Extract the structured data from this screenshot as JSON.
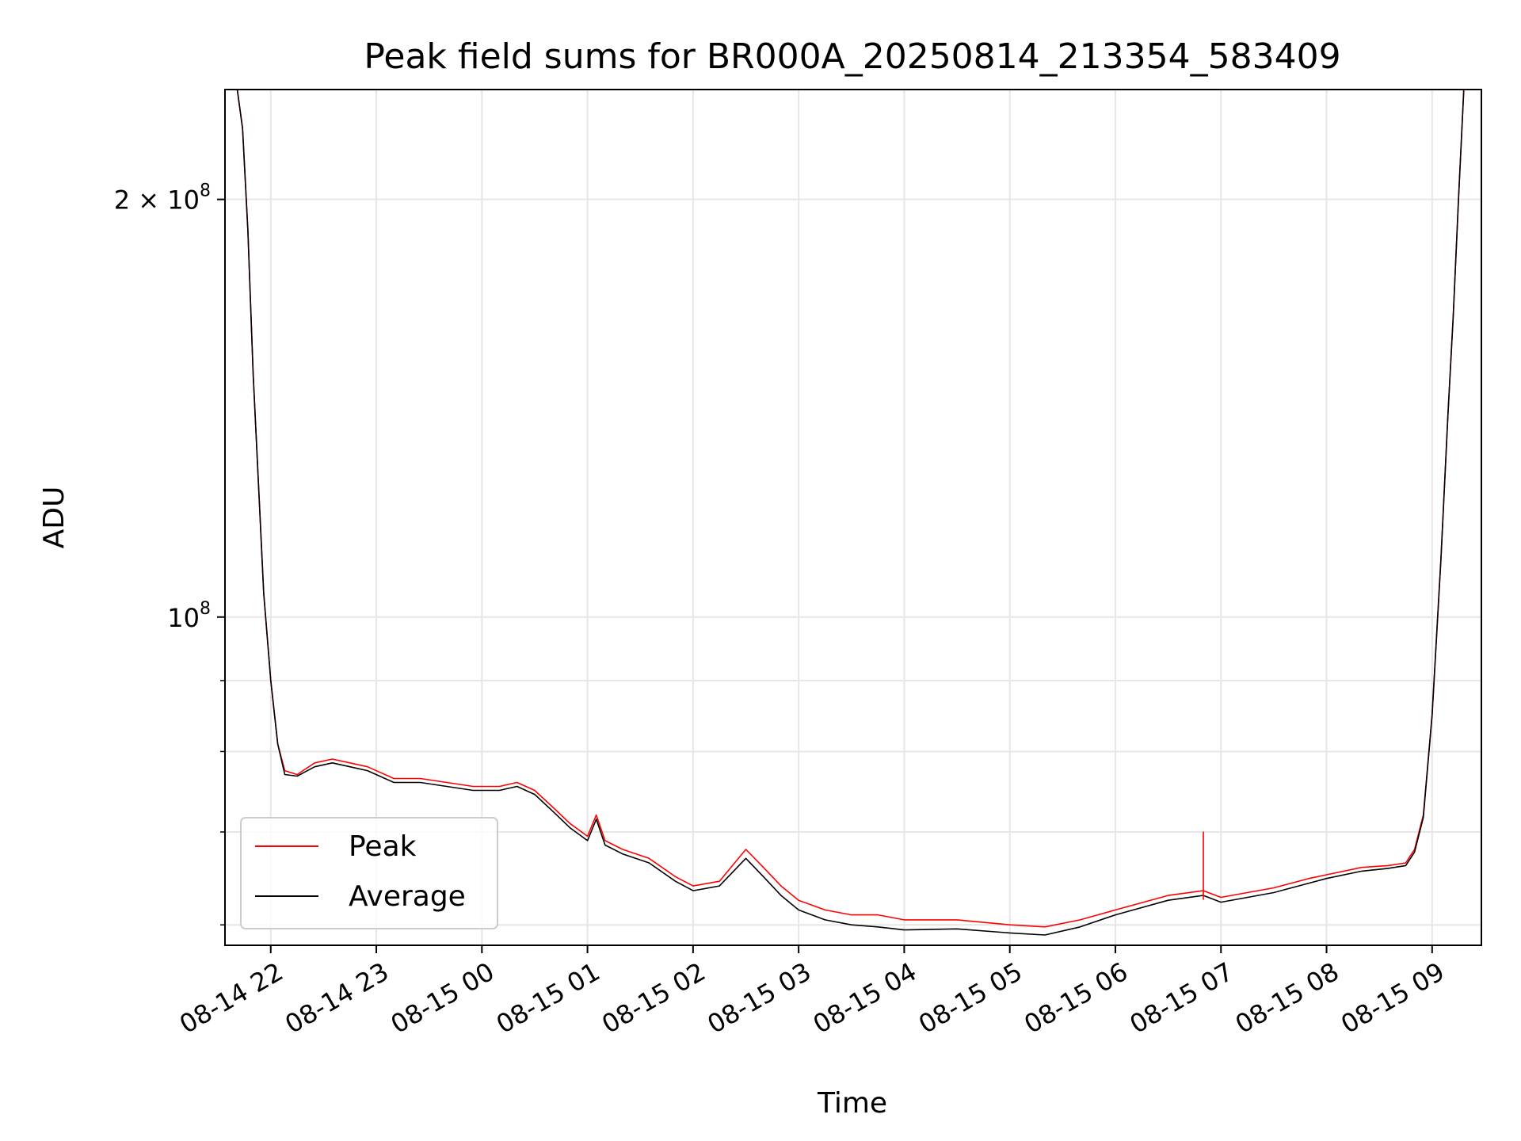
{
  "chart_data": {
    "type": "line",
    "title": "Peak field sums for BR000A_20250814_213354_583409",
    "xlabel": "Time",
    "ylabel": "ADU",
    "yscale": "log",
    "ylim": [
      58000000,
      240000000
    ],
    "xlim": [
      "2025-08-14 21:34",
      "2025-08-15 09:28"
    ],
    "grid": true,
    "legend_position": "lower-left",
    "x_ticks": [
      {
        "value": "2025-08-14 22:00",
        "label": "08-14 22"
      },
      {
        "value": "2025-08-14 23:00",
        "label": "08-14 23"
      },
      {
        "value": "2025-08-15 00:00",
        "label": "08-15 00"
      },
      {
        "value": "2025-08-15 01:00",
        "label": "08-15 01"
      },
      {
        "value": "2025-08-15 02:00",
        "label": "08-15 02"
      },
      {
        "value": "2025-08-15 03:00",
        "label": "08-15 03"
      },
      {
        "value": "2025-08-15 04:00",
        "label": "08-15 04"
      },
      {
        "value": "2025-08-15 05:00",
        "label": "08-15 05"
      },
      {
        "value": "2025-08-15 06:00",
        "label": "08-15 06"
      },
      {
        "value": "2025-08-15 07:00",
        "label": "08-15 07"
      },
      {
        "value": "2025-08-15 08:00",
        "label": "08-15 08"
      },
      {
        "value": "2025-08-15 09:00",
        "label": "08-15 09"
      }
    ],
    "y_major_ticks": [
      {
        "value": 100000000,
        "base": "10",
        "exp": "8",
        "prefix": ""
      },
      {
        "value": 200000000,
        "base": "10",
        "exp": "8",
        "prefix": "2 × "
      }
    ],
    "y_minor_ticks": [
      60000000,
      70000000,
      80000000,
      90000000
    ],
    "series": [
      {
        "name": "Peak",
        "color": "#ff0000",
        "x": [
          "2025-08-14 21:41",
          "2025-08-14 21:44",
          "2025-08-14 21:47",
          "2025-08-14 21:50",
          "2025-08-14 21:53",
          "2025-08-14 21:56",
          "2025-08-14 22:00",
          "2025-08-14 22:04",
          "2025-08-14 22:08",
          "2025-08-14 22:15",
          "2025-08-14 22:25",
          "2025-08-14 22:35",
          "2025-08-14 22:45",
          "2025-08-14 22:55",
          "2025-08-14 23:10",
          "2025-08-14 23:25",
          "2025-08-14 23:40",
          "2025-08-14 23:55",
          "2025-08-15 00:10",
          "2025-08-15 00:20",
          "2025-08-15 00:30",
          "2025-08-15 00:40",
          "2025-08-15 00:50",
          "2025-08-15 01:00",
          "2025-08-15 01:05",
          "2025-08-15 01:10",
          "2025-08-15 01:20",
          "2025-08-15 01:35",
          "2025-08-15 01:50",
          "2025-08-15 02:00",
          "2025-08-15 02:15",
          "2025-08-15 02:30",
          "2025-08-15 02:40",
          "2025-08-15 02:50",
          "2025-08-15 03:00",
          "2025-08-15 03:15",
          "2025-08-15 03:30",
          "2025-08-15 03:45",
          "2025-08-15 04:00",
          "2025-08-15 04:30",
          "2025-08-15 05:00",
          "2025-08-15 05:20",
          "2025-08-15 05:40",
          "2025-08-15 06:00",
          "2025-08-15 06:30",
          "2025-08-15 06:50",
          "2025-08-15 07:00",
          "2025-08-15 07:30",
          "2025-08-15 07:50",
          "2025-08-15 08:00",
          "2025-08-15 08:20",
          "2025-08-15 08:35",
          "2025-08-15 08:45",
          "2025-08-15 08:50",
          "2025-08-15 08:55",
          "2025-08-15 09:00",
          "2025-08-15 09:05",
          "2025-08-15 09:09",
          "2025-08-15 09:12",
          "2025-08-15 09:15",
          "2025-08-15 09:18"
        ],
        "values": [
          240000000,
          225000000,
          190000000,
          150000000,
          125000000,
          104000000,
          90000000,
          81000000,
          77500000,
          77000000,
          78500000,
          79000000,
          78500000,
          78000000,
          76500000,
          76500000,
          76000000,
          75500000,
          75500000,
          76000000,
          75000000,
          73000000,
          71000000,
          69500000,
          72000000,
          69000000,
          68000000,
          67000000,
          65000000,
          64000000,
          64500000,
          68000000,
          66000000,
          64000000,
          62500000,
          61500000,
          61000000,
          61000000,
          60500000,
          60500000,
          60000000,
          59800000,
          60500000,
          61500000,
          63000000,
          63500000,
          62800000,
          63800000,
          64800000,
          65200000,
          66000000,
          66200000,
          66500000,
          68000000,
          72000000,
          85000000,
          110000000,
          140000000,
          165000000,
          200000000,
          240000000
        ]
      },
      {
        "name": "Average",
        "color": "#000000",
        "x": [
          "2025-08-14 21:41",
          "2025-08-14 21:44",
          "2025-08-14 21:47",
          "2025-08-14 21:50",
          "2025-08-14 21:53",
          "2025-08-14 21:56",
          "2025-08-14 22:00",
          "2025-08-14 22:04",
          "2025-08-14 22:08",
          "2025-08-14 22:15",
          "2025-08-14 22:25",
          "2025-08-14 22:35",
          "2025-08-14 22:45",
          "2025-08-14 22:55",
          "2025-08-14 23:10",
          "2025-08-14 23:25",
          "2025-08-14 23:40",
          "2025-08-14 23:55",
          "2025-08-15 00:10",
          "2025-08-15 00:20",
          "2025-08-15 00:30",
          "2025-08-15 00:40",
          "2025-08-15 00:50",
          "2025-08-15 01:00",
          "2025-08-15 01:05",
          "2025-08-15 01:10",
          "2025-08-15 01:20",
          "2025-08-15 01:35",
          "2025-08-15 01:50",
          "2025-08-15 02:00",
          "2025-08-15 02:15",
          "2025-08-15 02:30",
          "2025-08-15 02:40",
          "2025-08-15 02:50",
          "2025-08-15 03:00",
          "2025-08-15 03:15",
          "2025-08-15 03:30",
          "2025-08-15 03:45",
          "2025-08-15 04:00",
          "2025-08-15 04:30",
          "2025-08-15 05:00",
          "2025-08-15 05:20",
          "2025-08-15 05:40",
          "2025-08-15 06:00",
          "2025-08-15 06:30",
          "2025-08-15 06:50",
          "2025-08-15 07:00",
          "2025-08-15 07:30",
          "2025-08-15 07:50",
          "2025-08-15 08:00",
          "2025-08-15 08:20",
          "2025-08-15 08:35",
          "2025-08-15 08:45",
          "2025-08-15 08:50",
          "2025-08-15 08:55",
          "2025-08-15 09:00",
          "2025-08-15 09:05",
          "2025-08-15 09:09",
          "2025-08-15 09:12",
          "2025-08-15 09:15",
          "2025-08-15 09:18"
        ],
        "values": [
          240000000,
          225000000,
          190000000,
          150000000,
          125000000,
          104000000,
          90000000,
          81000000,
          77000000,
          76800000,
          78000000,
          78500000,
          78000000,
          77500000,
          76000000,
          76000000,
          75500000,
          75000000,
          75000000,
          75500000,
          74500000,
          72500000,
          70500000,
          69000000,
          71500000,
          68500000,
          67500000,
          66500000,
          64500000,
          63500000,
          64000000,
          67000000,
          65000000,
          63000000,
          61500000,
          60500000,
          60000000,
          59800000,
          59500000,
          59600000,
          59200000,
          59000000,
          59800000,
          61000000,
          62500000,
          63000000,
          62300000,
          63300000,
          64300000,
          64800000,
          65600000,
          65900000,
          66200000,
          67700000,
          71700000,
          85000000,
          110000000,
          140000000,
          165000000,
          200000000,
          240000000
        ]
      }
    ],
    "spikes": [
      {
        "series": "Peak",
        "x": "2025-08-15 06:50",
        "value": 68000000
      }
    ]
  }
}
